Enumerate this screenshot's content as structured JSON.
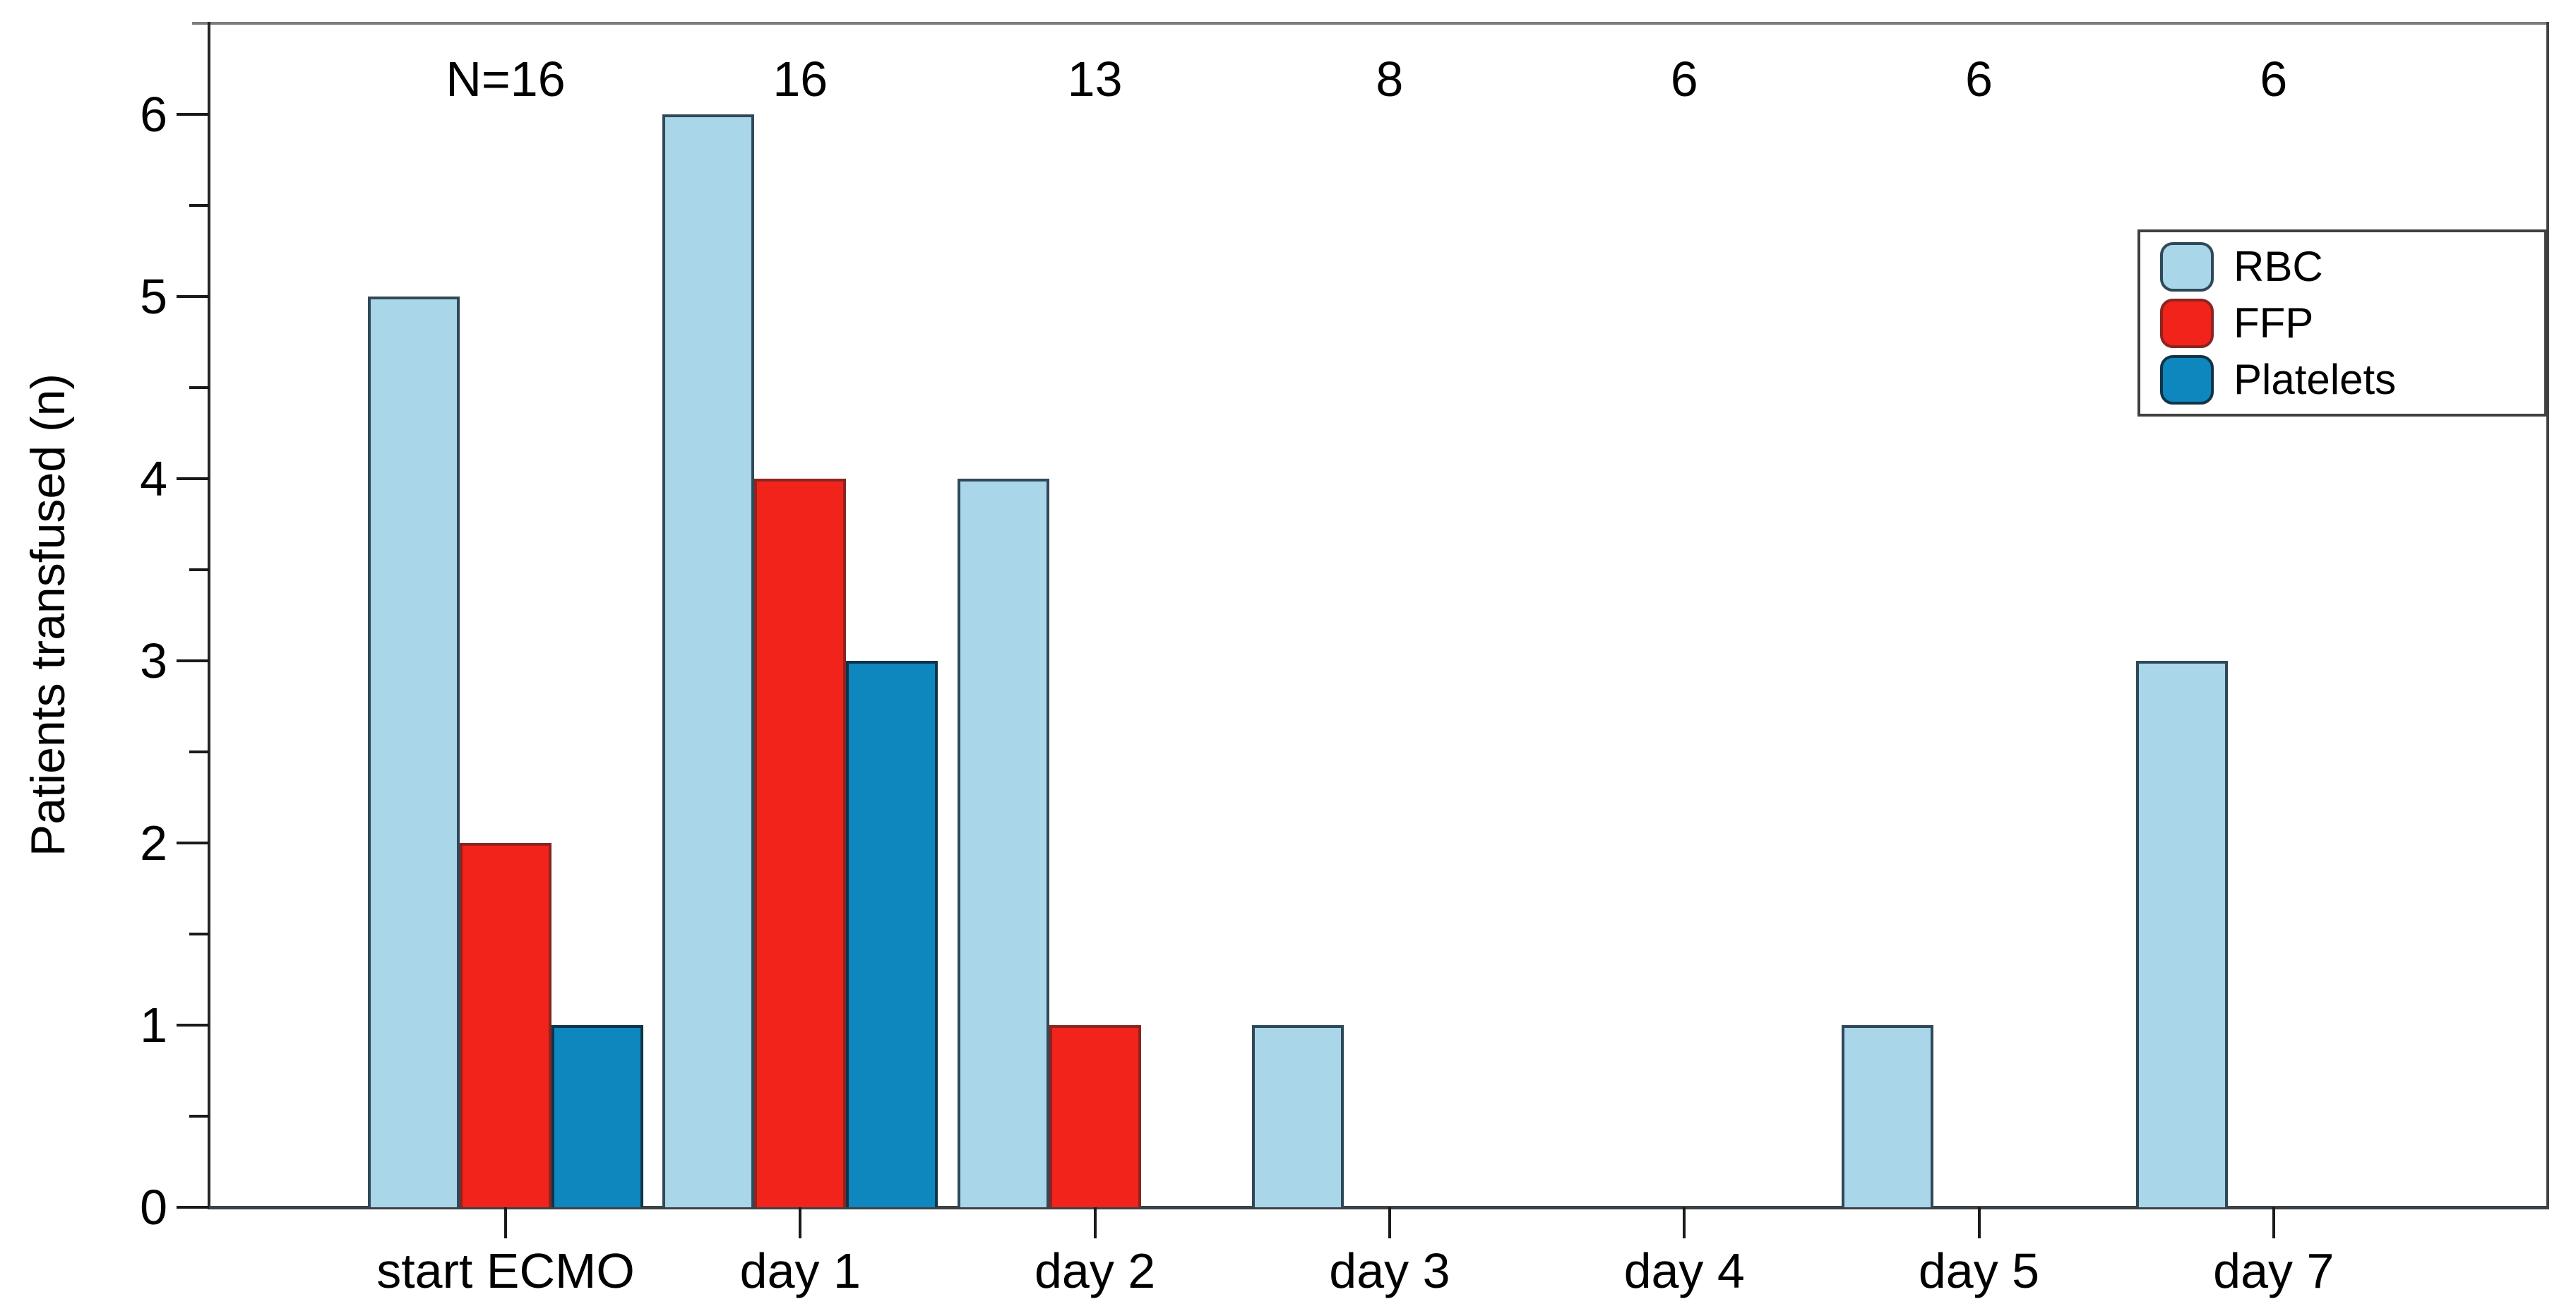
{
  "chart_data": {
    "type": "bar",
    "categories": [
      "start ECMO",
      "day 1",
      "day 2",
      "day 3",
      "day 4",
      "day 5",
      "day 7"
    ],
    "series": [
      {
        "name": "RBC",
        "fill": "#A9D6E8",
        "border": "#2F4959",
        "values": [
          5,
          6,
          4,
          1,
          0,
          1,
          3
        ]
      },
      {
        "name": "FFP",
        "fill": "#F2231A",
        "border": "#8B2521",
        "values": [
          2,
          4,
          1,
          0,
          0,
          0,
          0
        ]
      },
      {
        "name": "Platelets",
        "fill": "#0E86BE",
        "border": "#0E3448",
        "values": [
          1,
          3,
          0,
          0,
          0,
          0,
          0
        ]
      }
    ],
    "n_labels": [
      "N=16",
      "16",
      "13",
      "8",
      "6",
      "6",
      "6"
    ],
    "title": "",
    "xlabel": "",
    "ylabel": "Patients transfused (n)",
    "ylim": [
      0,
      6.5
    ],
    "yticks": [
      0,
      1,
      2,
      3,
      4,
      5,
      6
    ],
    "minor_tick_step": 0.5,
    "grid": false,
    "legend_position": "upper right",
    "colors": {
      "axis": "#262626",
      "frame": "#7d7d7d",
      "tick": "#1a1a1a",
      "text": "#000000",
      "background": "#ffffff"
    }
  }
}
